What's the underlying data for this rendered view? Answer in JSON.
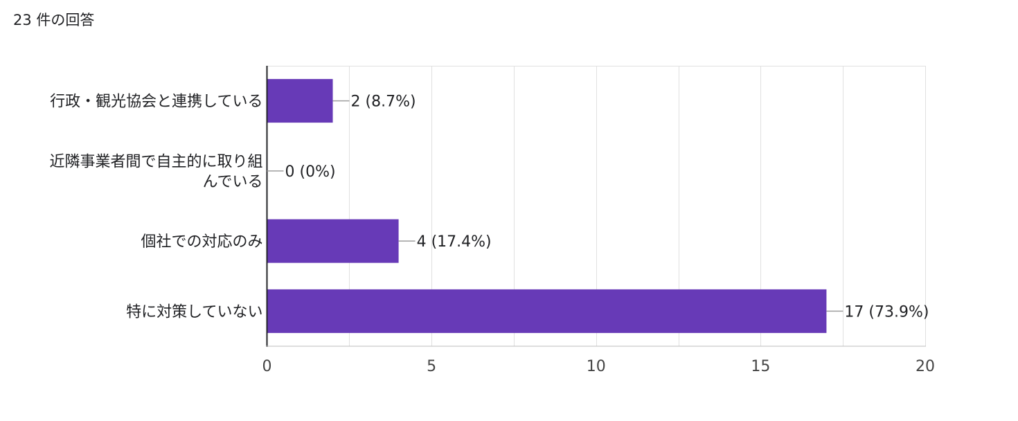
{
  "summary": {
    "response_count": "23 件の回答"
  },
  "colors": {
    "bar": "#673ab7",
    "grid": "#e0e0e0",
    "axis": "#202124",
    "text": "#202124"
  },
  "chart_data": {
    "type": "bar",
    "orientation": "horizontal",
    "categories": [
      [
        "行政・観光協会と連携している"
      ],
      [
        "近隣事業者間で自主的に取り組",
        "んでいる"
      ],
      [
        "個社での対応のみ"
      ],
      [
        "特に対策していない"
      ]
    ],
    "values": [
      2,
      0,
      4,
      17
    ],
    "data_labels": [
      "2 (8.7%)",
      "0 (0%)",
      "4 (17.4%)",
      "17 (73.9%)"
    ],
    "xlim": [
      0,
      20
    ],
    "x_ticks": [
      "0",
      "5",
      "10",
      "15",
      "20"
    ],
    "grid": true,
    "legend": "none"
  }
}
